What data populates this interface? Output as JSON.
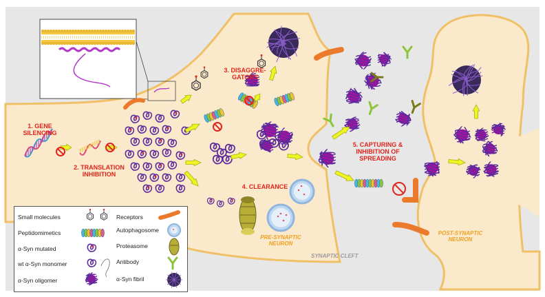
{
  "labels": {
    "gene_silencing": "1. GENE\nSILENCING",
    "translation_inhibition": "2. TRANSLATION\nINHIBITION",
    "disaggregators": "3. DISAGGRE-\nGATORS",
    "clearance": "4. CLEARANCE",
    "capturing": "5. CAPTURING &\nINHIBITION OF\nSPREADING",
    "pre_synaptic": "PRE-SYNAPTIC\nNEURON",
    "post_synaptic": "POST-SYNAPTIC\nNEURON",
    "synaptic_cleft": "SYNAPTIC CLEFT"
  },
  "legend": {
    "small_molecules": "Small molecules",
    "peptidomimetics": "Peptidomimetics",
    "syn_mutated": "α-Syn mutated",
    "wt_syn_monomer": "wt α-Syn monomer",
    "syn_oligomer": "α-Syn oligomer",
    "receptors": "Receptors",
    "autophagosome": "Autophagosome",
    "proteasome": "Proteasome",
    "antibody": "Antibody",
    "syn_fibril": "α-Syn fibril"
  },
  "colors": {
    "cell_fill": "#fbe9cc",
    "cell_stroke": "#f0c067",
    "arrow_fill": "#eef522",
    "arrow_stroke": "#a7b10f",
    "label_red": "#e0241b",
    "label_orange": "#f0a020",
    "oligomer_core": "#a8129f",
    "protein_purple": "#5c2a9c",
    "receptor": "#ec7a2c",
    "antibody_green": "#8cc43c",
    "antibody_dark": "#7a7a18",
    "fibril": "#3a2a5c",
    "autophagosome": "#bfd8f0",
    "proteasome": "#b9ae35",
    "inhibit_red": "#e0241b"
  }
}
